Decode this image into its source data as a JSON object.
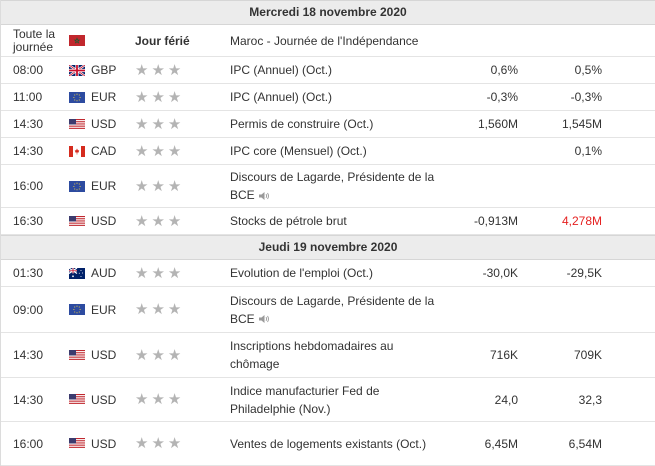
{
  "days": [
    {
      "header": "Mercredi 18 novembre 2020",
      "holiday": {
        "time": "Toute la journée",
        "flag": "morocco-flag",
        "label": "Jour férié",
        "event": "Maroc - Journée de l'Indépendance"
      },
      "events": [
        {
          "time": "08:00",
          "flag": "uk-flag",
          "currency": "GBP",
          "event": "IPC (Annuel) (Oct.)",
          "actual": "0,6%",
          "forecast": "0,5%",
          "previous": "",
          "speech": false
        },
        {
          "time": "11:00",
          "flag": "eu-flag",
          "currency": "EUR",
          "event": "IPC (Annuel) (Oct.)",
          "actual": "-0,3%",
          "forecast": "-0,3%",
          "previous": "",
          "speech": false
        },
        {
          "time": "14:30",
          "flag": "us-flag",
          "currency": "USD",
          "event": "Permis de construire (Oct.)",
          "actual": "1,560M",
          "forecast": "1,545M",
          "previous": "",
          "speech": false
        },
        {
          "time": "14:30",
          "flag": "ca-flag",
          "currency": "CAD",
          "event": "IPC core (Mensuel) (Oct.)",
          "actual": "",
          "forecast": "0,1%",
          "previous": "",
          "speech": false
        },
        {
          "time": "16:00",
          "flag": "eu-flag",
          "currency": "EUR",
          "event": "Discours de Lagarde, Présidente de la BCE",
          "actual": "",
          "forecast": "",
          "previous": "",
          "speech": true
        },
        {
          "time": "16:30",
          "flag": "us-flag",
          "currency": "USD",
          "event": "Stocks de pétrole brut",
          "actual": "-0,913M",
          "forecast": "4,278M",
          "forecast_color": "#e52121",
          "previous": "",
          "speech": false
        }
      ]
    },
    {
      "header": "Jeudi 19 novembre 2020",
      "events": [
        {
          "time": "01:30",
          "flag": "au-flag",
          "currency": "AUD",
          "event": "Evolution de l'emploi (Oct.)",
          "actual": "-30,0K",
          "forecast": "-29,5K",
          "previous": "",
          "speech": false
        },
        {
          "time": "09:00",
          "flag": "eu-flag",
          "currency": "EUR",
          "event": "Discours de Lagarde, Présidente de la BCE",
          "actual": "",
          "forecast": "",
          "previous": "",
          "speech": true
        },
        {
          "time": "14:30",
          "flag": "us-flag",
          "currency": "USD",
          "event": "Inscriptions hebdomadaires au chômage",
          "actual": "716K",
          "forecast": "709K",
          "previous": "",
          "speech": false
        },
        {
          "time": "14:30",
          "flag": "us-flag",
          "currency": "USD",
          "event": "Indice manufacturier Fed de Philadelphie (Nov.)",
          "actual": "24,0",
          "forecast": "32,3",
          "previous": "",
          "speech": false
        },
        {
          "time": "16:00",
          "flag": "us-flag",
          "currency": "USD",
          "event": "Ventes de logements existants (Oct.)",
          "actual": "6,45M",
          "forecast": "6,54M",
          "previous": "",
          "speech": false
        }
      ]
    }
  ],
  "importance_icon": "star-icon",
  "speech_icon": "speaker-icon"
}
